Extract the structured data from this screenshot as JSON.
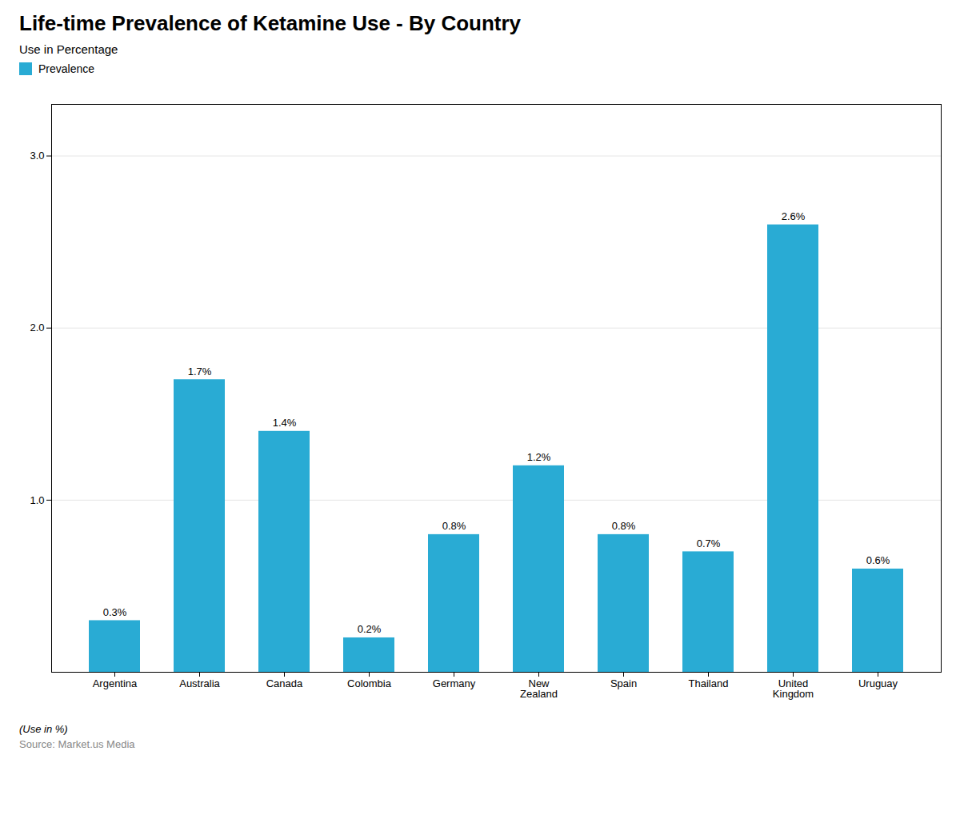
{
  "chart_data": {
    "type": "bar",
    "title": "Life-time Prevalence of Ketamine Use - By Country",
    "subtitle": "Use in Percentage",
    "annotations": [
      "(Use in %)",
      "Source: Market.us Media"
    ],
    "categories": [
      "Argentina",
      "Australia",
      "Canada",
      "Colombia",
      "Germany",
      "New\nZealand",
      "Spain",
      "Thailand",
      "United\nKingdom",
      "Uruguay"
    ],
    "series": [
      {
        "name": "Prevalence",
        "color": "#29ABD4",
        "values": [
          0.3,
          1.7,
          1.4,
          0.2,
          0.8,
          1.2,
          0.8,
          0.7,
          2.6,
          0.6
        ],
        "value_labels": [
          "0.3%",
          "1.7%",
          "1.4%",
          "0.2%",
          "0.8%",
          "1.2%",
          "0.8%",
          "0.7%",
          "2.6%",
          "0.6%"
        ]
      }
    ],
    "data_labels": true,
    "ylim": [
      0,
      3.3
    ],
    "yticks": [
      1,
      2,
      3
    ],
    "grid": true
  }
}
